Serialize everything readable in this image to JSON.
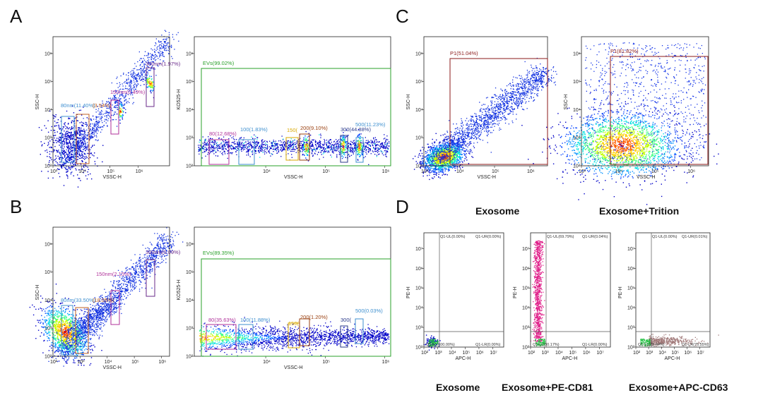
{
  "panel_labels": [
    "A",
    "B",
    "C",
    "D"
  ],
  "captions_c": [
    "Exosome",
    "Exosome+Trition"
  ],
  "captions_d": [
    "Exosome",
    "Exosome+PE-CD81",
    "Exosome+APC-CD63"
  ],
  "colors": {
    "green_gate": "#2aa02a",
    "p1_gate": "#8b1a1a",
    "quad_line": "#555555",
    "label_cyan": "#3d8fcf",
    "label_orange": "#c06020",
    "label_magenta": "#b0329a",
    "label_purple": "#6a2a8a",
    "label_yellow": "#d8a800",
    "label_brown": "#9a4010",
    "label_navy": "#2a3a8a",
    "label_dark_red": "#9a1a1a",
    "pe_points": "#e0208a",
    "apc_points": "#a07878",
    "ll_points": "#20c040"
  },
  "chart_data": [
    {
      "panel": "A",
      "type": "scatter",
      "description_key": "size-beads SSC vs VSSC",
      "xlabel": "VSSC-H",
      "ylabel": "SSC-H",
      "xscale": "log",
      "yscale": "log",
      "xlim": [
        100,
        10000000
      ],
      "ylim": [
        100,
        10000000
      ],
      "x_ticks": [
        "10³",
        "10⁴",
        "10⁵",
        "10⁶"
      ],
      "y_ticks": [
        "10²",
        "10³",
        "10⁴",
        "10⁵",
        "10⁶"
      ],
      "gates": [
        {
          "label": "80nm(11.40%)",
          "color": "#3d8fcf"
        },
        {
          "label": "(3.54%)",
          "color": "#c06020"
        },
        {
          "label": "150nm(0.49%)",
          "color": "#b0329a"
        },
        {
          "label": "300nm(1.97%)",
          "color": "#6a2a8a"
        }
      ]
    },
    {
      "panel": "A",
      "type": "scatter",
      "xlabel": "VSSC-H",
      "ylabel": "KO525-H",
      "xscale": "log",
      "yscale": "log",
      "xlim": [
        200,
        3000000
      ],
      "ylim": [
        100,
        10000000
      ],
      "x_ticks": [
        "10⁴",
        "10⁵",
        "10⁶"
      ],
      "y_ticks": [
        "10²",
        "10³",
        "10⁴",
        "10⁵",
        "10⁶"
      ],
      "gates": [
        {
          "label": "EVs(99.02%)",
          "color": "#2aa02a"
        },
        {
          "label": "80(12.68%)",
          "color": "#b0329a"
        },
        {
          "label": "100(1.83%)",
          "color": "#3d8fcf"
        },
        {
          "label": "150(",
          "color": "#d8a800"
        },
        {
          "label": "200(9.10%)",
          "color": "#9a4010"
        },
        {
          "label": "300(44.88%)",
          "color": "#2a3a8a"
        },
        {
          "label": "500(11.23%)",
          "color": "#3d8fcf"
        }
      ]
    },
    {
      "panel": "B",
      "type": "scatter",
      "xlabel": "VSSC-H",
      "ylabel": "SSC-H",
      "xscale": "log",
      "yscale": "log",
      "xlim": [
        100,
        10000000
      ],
      "ylim": [
        100,
        10000000
      ],
      "x_ticks": [
        "10²",
        "10³",
        "10⁴",
        "10⁵",
        "10⁶"
      ],
      "y_ticks": [
        "10²",
        "10³",
        "10⁴",
        "10⁵",
        "10⁶"
      ],
      "gates": [
        {
          "label": "80nm(33.50%)",
          "color": "#3d8fcf"
        },
        {
          "label": "(18.05%)",
          "color": "#c06020"
        },
        {
          "label": "150nm(2.15%)",
          "color": "#b0329a"
        },
        {
          "label": "300nm(0.09%)",
          "color": "#6a2a8a"
        }
      ]
    },
    {
      "panel": "B",
      "type": "scatter",
      "xlabel": "VSSC-H",
      "ylabel": "KO525-H",
      "xscale": "log",
      "yscale": "log",
      "xlim": [
        200,
        3000000
      ],
      "ylim": [
        100,
        10000000
      ],
      "x_ticks": [
        "10⁴",
        "10⁵",
        "10⁶"
      ],
      "y_ticks": [
        "10²",
        "10³",
        "10⁴",
        "10⁵",
        "10⁶"
      ],
      "gates": [
        {
          "label": "EVs(89.35%)",
          "color": "#2aa02a"
        },
        {
          "label": "80(35.63%)",
          "color": "#b0329a"
        },
        {
          "label": "100(11.88%)",
          "color": "#3d8fcf"
        },
        {
          "label": "150(",
          "color": "#d8a800"
        },
        {
          "label": "200(1.20%)",
          "color": "#9a4010"
        },
        {
          "label": "300(",
          "color": "#2a3a8a"
        },
        {
          "label": "500(0.03%)",
          "color": "#3d8fcf"
        }
      ]
    },
    {
      "panel": "C",
      "type": "scatter",
      "title": "Exosome",
      "xlabel": "VSSC-H",
      "ylabel": "SSC-H",
      "xscale": "log",
      "yscale": "log",
      "xlim": [
        1000,
        4000000
      ],
      "ylim": [
        100,
        10000000
      ],
      "x_ticks": [
        "10³",
        "10⁴",
        "10⁵",
        "10⁶"
      ],
      "y_ticks": [
        "10²",
        "10³",
        "10⁴",
        "10⁵",
        "10⁶"
      ],
      "gates": [
        {
          "label": "P1(51.04%)",
          "color": "#8b1a1a"
        }
      ]
    },
    {
      "panel": "C",
      "type": "scatter",
      "title": "Exosome+Trition",
      "xlabel": "VSSC-H",
      "ylabel": "SSC-H",
      "xscale": "log",
      "yscale": "log",
      "xlim": [
        1000,
        4000000
      ],
      "ylim": [
        100,
        10000000
      ],
      "x_ticks": [
        "10³",
        "10⁴",
        "10⁵",
        "10⁶"
      ],
      "y_ticks": [
        "10²",
        "10³",
        "10⁴",
        "10⁵",
        "10⁶"
      ],
      "gates": [
        {
          "label": "P1(81.82%)",
          "color": "#8b1a1a"
        }
      ]
    },
    {
      "panel": "D",
      "type": "scatter",
      "title": "Exosome",
      "xlabel": "APC-H",
      "ylabel": "PE-H",
      "xscale": "log",
      "yscale": "log",
      "x_ticks": [
        "10²",
        "10³",
        "10⁴",
        "10⁵",
        "10⁶",
        "10⁷"
      ],
      "y_ticks": [
        "10²",
        "10³",
        "10⁴",
        "10⁵",
        "10⁶",
        "10⁷"
      ],
      "quadrants": {
        "UL": "Q1-UL(0.00%)",
        "UR": "Q1-UR(0.00%)",
        "LL": "Q1-LL(100.00%)",
        "LR": "Q1-LR(0.00%)"
      }
    },
    {
      "panel": "D",
      "type": "scatter",
      "title": "Exosome+PE-CD81",
      "xlabel": "APC-H",
      "ylabel": "PE-H",
      "xscale": "log",
      "yscale": "log",
      "x_ticks": [
        "10²",
        "10³",
        "10⁴",
        "10⁵",
        "10⁶",
        "10⁷"
      ],
      "y_ticks": [
        "10²",
        "10³",
        "10⁴",
        "10⁵",
        "10⁶",
        "10⁷"
      ],
      "quadrants": {
        "UL": "Q1-UL(69.79%)",
        "UR": "Q1-UR(0.04%)",
        "LL": "Q1-LL(30.17%)",
        "LR": "Q1-LR(0.00%)"
      }
    },
    {
      "panel": "D",
      "type": "scatter",
      "title": "Exosome+APC-CD63",
      "xlabel": "APC-H",
      "ylabel": "PE-H",
      "xscale": "log",
      "yscale": "log",
      "x_ticks": [
        "10²",
        "10³",
        "10⁴",
        "10⁵",
        "10⁶",
        "10⁷"
      ],
      "y_ticks": [
        "10²",
        "10³",
        "10⁴",
        "10⁵",
        "10⁶",
        "10⁷"
      ],
      "quadrants": {
        "UL": "Q1-UL(0.00%)",
        "UR": "Q1-UR(0.01%)",
        "LL": "Q1-LL(29.44%)",
        "LR": "Q1-LR(70.55%)"
      }
    }
  ]
}
